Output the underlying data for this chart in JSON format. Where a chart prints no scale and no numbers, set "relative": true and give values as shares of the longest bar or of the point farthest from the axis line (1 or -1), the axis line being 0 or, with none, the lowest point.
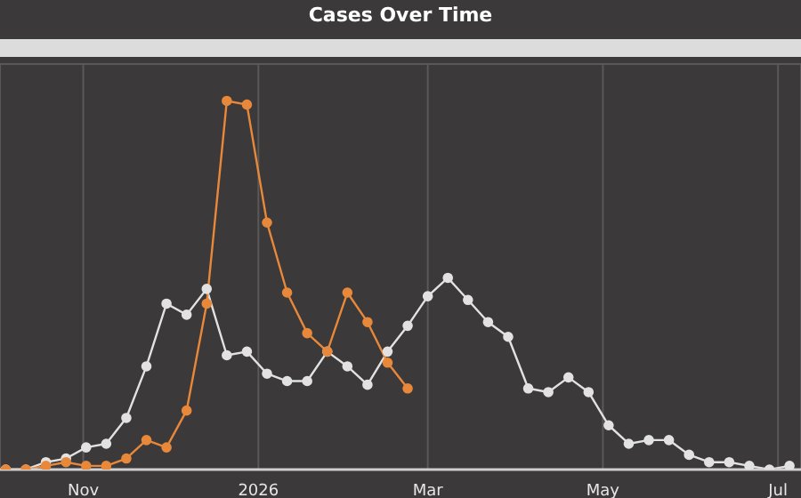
{
  "chart_data": {
    "type": "line",
    "title": "Cases Over Time",
    "relative": true,
    "grid": true,
    "legend": false,
    "marker": "circle",
    "line_style": "solid",
    "x": [
      "2025-10-05",
      "2025-10-12",
      "2025-10-19",
      "2025-10-26",
      "2025-11-02",
      "2025-11-09",
      "2025-11-16",
      "2025-11-23",
      "2025-11-30",
      "2025-12-07",
      "2025-12-14",
      "2025-12-21",
      "2025-12-28",
      "2026-01-04",
      "2026-01-11",
      "2026-01-18",
      "2026-01-25",
      "2026-02-01",
      "2026-02-08",
      "2026-02-15",
      "2026-02-22",
      "2026-03-01",
      "2026-03-08",
      "2026-03-15",
      "2026-03-22",
      "2026-03-29",
      "2026-04-05",
      "2026-04-12",
      "2026-04-19",
      "2026-04-26",
      "2026-05-03",
      "2026-05-10",
      "2026-05-17",
      "2026-05-24",
      "2026-05-31",
      "2026-06-07",
      "2026-06-14",
      "2026-06-21",
      "2026-06-28",
      "2026-07-05"
    ],
    "xlim": [
      "2025-10-03",
      "2026-07-09"
    ],
    "xticks": [
      {
        "value": "2025-11-01",
        "label": "Nov"
      },
      {
        "value": "2026-01-01",
        "label": "2026"
      },
      {
        "value": "2026-03-01",
        "label": "Mar"
      },
      {
        "value": "2026-05-01",
        "label": "May"
      },
      {
        "value": "2026-07-01",
        "label": "Jul"
      }
    ],
    "series": [
      {
        "color": "#e2e2e2",
        "values": [
          0,
          0,
          0.02,
          0.03,
          0.06,
          0.07,
          0.14,
          0.28,
          0.45,
          0.42,
          0.49,
          0.31,
          0.32,
          0.26,
          0.24,
          0.24,
          0.32,
          0.28,
          0.23,
          0.32,
          0.39,
          0.47,
          0.52,
          0.46,
          0.4,
          0.36,
          0.22,
          0.21,
          0.25,
          0.21,
          0.12,
          0.07,
          0.08,
          0.08,
          0.04,
          0.02,
          0.02,
          0.01,
          0,
          0.01
        ]
      },
      {
        "color": "#e8883a",
        "values": [
          0,
          0,
          0.01,
          0.02,
          0.01,
          0.01,
          0.03,
          0.08,
          0.06,
          0.16,
          0.45,
          1,
          0.99,
          0.67,
          0.48,
          0.37,
          0.32,
          0.48,
          0.4,
          0.29,
          0.22,
          null,
          null,
          null,
          null,
          null,
          null,
          null,
          null,
          null,
          null,
          null,
          null,
          null,
          null,
          null,
          null,
          null,
          null,
          null
        ]
      }
    ]
  }
}
